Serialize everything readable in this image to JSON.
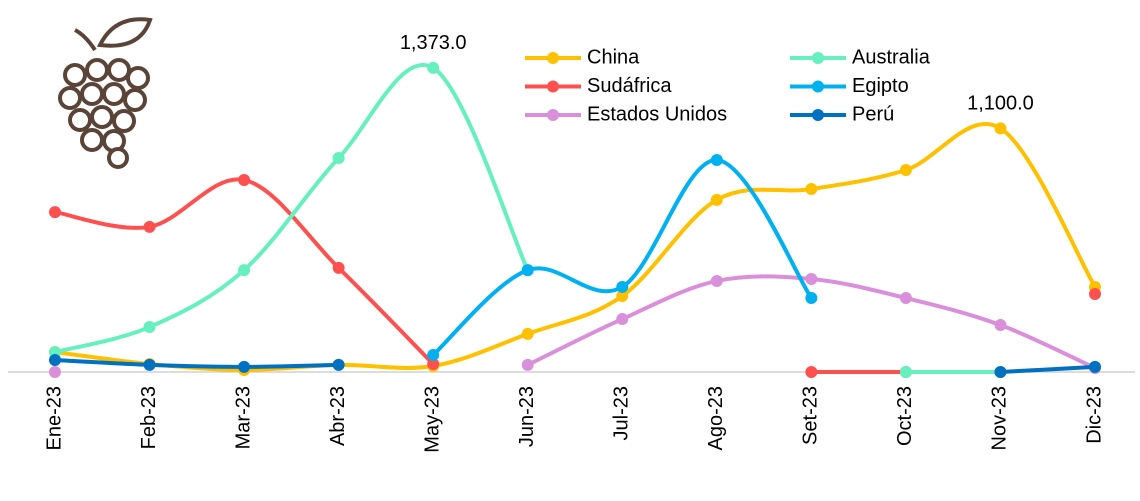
{
  "chart_data": {
    "type": "line",
    "categories": [
      "Ene-23",
      "Feb-23",
      "Mar-23",
      "Abr-23",
      "May-23",
      "Jun-23",
      "Jul-23",
      "Ago-23",
      "Set-23",
      "Oct-23",
      "Nov-23",
      "Dic-23"
    ],
    "ylim": [
      0,
      1600
    ],
    "legend": "top-right",
    "series": [
      {
        "name": "China",
        "color": "#FFC000",
        "values": [
          90,
          36,
          9,
          32,
          27,
          172,
          343,
          777,
          826,
          912,
          1100,
          384
        ],
        "value_labels": [
          null,
          null,
          null,
          null,
          null,
          null,
          null,
          null,
          null,
          null,
          "1,100.0",
          null
        ]
      },
      {
        "name": "Sudáfrica",
        "color": "#FF5050",
        "values": [
          722,
          655,
          867,
          470,
          36,
          null,
          null,
          null,
          0,
          0,
          null,
          352
        ]
      },
      {
        "name": "Estados Unidos",
        "color": "#DA8FDB",
        "values": [
          0,
          null,
          null,
          null,
          null,
          32,
          239,
          411,
          420,
          334,
          212,
          18
        ]
      },
      {
        "name": "Australia",
        "color": "#66F0C0",
        "values": [
          90,
          203,
          460,
          966,
          1373,
          460,
          null,
          null,
          null,
          0,
          0,
          null
        ],
        "value_labels": [
          null,
          null,
          null,
          null,
          "1,373.0",
          null,
          null,
          null,
          null,
          null,
          null,
          null
        ]
      },
      {
        "name": "Egipto",
        "color": "#00B0F0",
        "values": [
          null,
          null,
          null,
          null,
          77,
          460,
          384,
          957,
          334,
          null,
          null,
          null
        ]
      },
      {
        "name": "Perú",
        "color": "#0070C0",
        "values": [
          54,
          32,
          23,
          32,
          null,
          null,
          null,
          null,
          null,
          null,
          0,
          23
        ]
      }
    ]
  }
}
